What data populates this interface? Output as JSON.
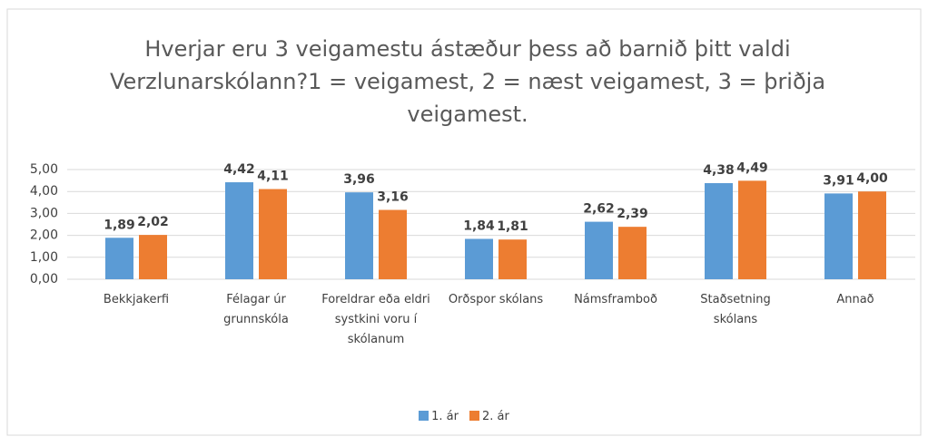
{
  "chart_data": {
    "type": "bar",
    "title": "Hverjar eru 3 veigamestu ástæður þess að barnið þitt valdi Verzlunarskólann?1 = veigamest, 2 = næst veigamest, 3 = þriðja veigamest.",
    "categories": [
      "Bekkjakerfi",
      "Félagar úr grunnskóla",
      "Foreldrar eða eldri systkini voru í skólanum",
      "Orðspor skólans",
      "Námsframboð",
      "Staðsetning skólans",
      "Annað"
    ],
    "series": [
      {
        "name": "1. ár",
        "color": "#5b9bd5",
        "values": [
          1.89,
          4.42,
          3.96,
          1.84,
          2.62,
          4.38,
          3.91
        ],
        "value_labels": [
          "1,89",
          "4,42",
          "3,96",
          "1,84",
          "2,62",
          "4,38",
          "3,91"
        ]
      },
      {
        "name": "2. ár",
        "color": "#ed7d31",
        "values": [
          2.02,
          4.11,
          3.16,
          1.81,
          2.39,
          4.49,
          4.0
        ],
        "value_labels": [
          "2,02",
          "4,11",
          "3,16",
          "1,81",
          "2,39",
          "4,49",
          "4,00"
        ]
      }
    ],
    "ylim": [
      0,
      5
    ],
    "yticks": [
      {
        "value": 0,
        "label": "0,00"
      },
      {
        "value": 1,
        "label": "1,00"
      },
      {
        "value": 2,
        "label": "2,00"
      },
      {
        "value": 3,
        "label": "3,00"
      },
      {
        "value": 4,
        "label": "4,00"
      },
      {
        "value": 5,
        "label": "5,00"
      }
    ],
    "grid": true,
    "legend": "bottom"
  }
}
